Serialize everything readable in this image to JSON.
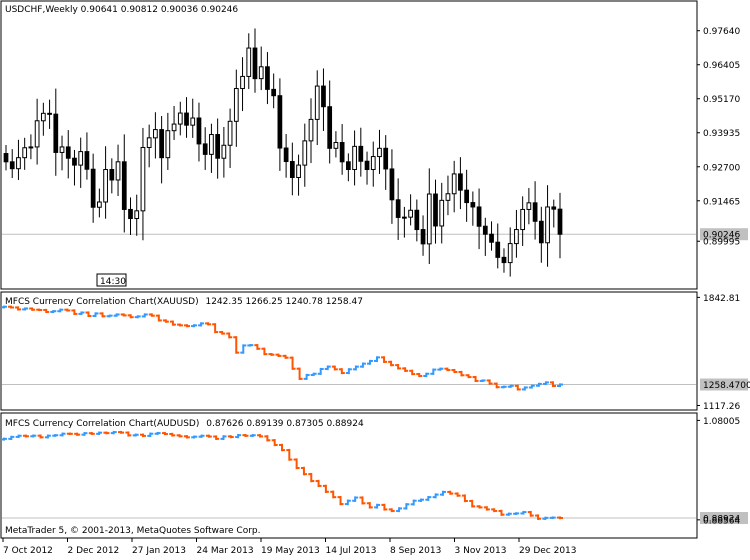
{
  "window": {
    "header": "USDCHF,Weekly  0.90641 0.90812 0.90036 0.90246",
    "time_marker": "14:30",
    "copyright": "MetaTrader 5, © 2001-2013, MetaQuotes Software Corp."
  },
  "colors": {
    "bull": "#ffffff",
    "bear": "#000000",
    "up_bar": "#3399ff",
    "down_bar": "#ff5500",
    "grid_line": "#c0c0c0",
    "frame": "#000000"
  },
  "chart_data": [
    {
      "type": "candlestick",
      "title": "USDCHF,Weekly",
      "ohlc_label": "0.90641 0.90812 0.90036 0.90246",
      "ylim": [
        0.8837,
        0.9861
      ],
      "y_ticks": [
        "0.97640",
        "0.96405",
        "0.95170",
        "0.93935",
        "0.92700",
        "0.91465",
        "0.90246",
        "0.89995"
      ],
      "last_value_label": "0.90246",
      "series_close": [
        0.9288,
        0.9263,
        0.9303,
        0.9339,
        0.9342,
        0.9437,
        0.9464,
        0.9461,
        0.9322,
        0.9342,
        0.9301,
        0.9276,
        0.9325,
        0.9261,
        0.9123,
        0.9142,
        0.926,
        0.9222,
        0.9288,
        0.9115,
        0.9082,
        0.911,
        0.934,
        0.9375,
        0.9405,
        0.9303,
        0.9401,
        0.9425,
        0.9465,
        0.9421,
        0.9447,
        0.9353,
        0.9315,
        0.9387,
        0.9301,
        0.9348,
        0.9435,
        0.9554,
        0.9598,
        0.9701,
        0.959,
        0.9633,
        0.9551,
        0.9528,
        0.9338,
        0.9289,
        0.9231,
        0.9276,
        0.9364,
        0.9442,
        0.9563,
        0.9488,
        0.9337,
        0.9358,
        0.9288,
        0.926,
        0.9344,
        0.929,
        0.926,
        0.9307,
        0.9337,
        0.9262,
        0.915,
        0.9086,
        0.9087,
        0.9112,
        0.9042,
        0.899,
        0.9171,
        0.9055,
        0.9148,
        0.9172,
        0.9244,
        0.9185,
        0.914,
        0.9124,
        0.9054,
        0.9025,
        0.8996,
        0.8941,
        0.8922,
        0.8991,
        0.9042,
        0.9115,
        0.9139,
        0.9072,
        0.8994,
        0.9124,
        0.9116,
        0.9025
      ],
      "x_ticks": [
        "7 Oct 2012",
        "2 Dec 2012",
        "27 Jan 2013",
        "24 Mar 2013",
        "19 May 2013",
        "14 Jul 2013",
        "8 Sep 2013",
        "3 Nov 2013",
        "29 Dec 2013"
      ]
    },
    {
      "type": "bar",
      "title": "MFCS Currency Correlation Chart(XAUUSD)",
      "ohlc_label": "1242.35 1266.25 1240.78 1258.47",
      "ylim": [
        1107.0,
        1852.0
      ],
      "y_ticks": [
        "1842.81",
        "1117.26"
      ],
      "last_value_label": "1258.4700",
      "series_close": [
        1780,
        1775,
        1762,
        1768,
        1760,
        1758,
        1745,
        1750,
        1760,
        1755,
        1732,
        1741,
        1718,
        1735,
        1716,
        1720,
        1728,
        1722,
        1710,
        1715,
        1728,
        1720,
        1688,
        1680,
        1660,
        1655,
        1650,
        1655,
        1668,
        1662,
        1610,
        1600,
        1575,
        1472,
        1520,
        1522,
        1498,
        1462,
        1458,
        1450,
        1438,
        1364,
        1296,
        1322,
        1330,
        1362,
        1378,
        1360,
        1335,
        1360,
        1378,
        1398,
        1416,
        1440,
        1410,
        1388,
        1366,
        1350,
        1328,
        1315,
        1330,
        1358,
        1364,
        1355,
        1342,
        1320,
        1308,
        1282,
        1285,
        1264,
        1240,
        1243,
        1249,
        1225,
        1238,
        1250,
        1262,
        1272,
        1248,
        1258
      ],
      "x_ticks": []
    },
    {
      "type": "bar",
      "title": "MFCS Currency Correlation Chart(AUDUSD)",
      "ohlc_label": "0.87626 0.89139 0.87305 0.88924",
      "ylim": [
        0.856,
        1.0867
      ],
      "y_ticks": [
        "1.08005",
        "0.88924",
        "0.88564"
      ],
      "last_value_label": "0.88924",
      "series_close": [
        1.044,
        1.0478,
        1.05,
        1.049,
        1.0502,
        1.047,
        1.0502,
        1.051,
        1.054,
        1.0538,
        1.0522,
        1.055,
        1.0538,
        1.056,
        1.0552,
        1.0572,
        1.0562,
        1.0508,
        1.052,
        1.0498,
        1.054,
        1.0552,
        1.0535,
        1.0508,
        1.049,
        1.047,
        1.0482,
        1.05,
        1.0485,
        1.044,
        1.0488,
        1.0475,
        1.0512,
        1.05,
        1.051,
        1.0488,
        1.0412,
        1.032,
        1.022,
        1.0035,
        0.987,
        0.975,
        0.9615,
        0.952,
        0.9405,
        0.93,
        0.9165,
        0.923,
        0.9292,
        0.918,
        0.91,
        0.9148,
        0.906,
        0.903,
        0.908,
        0.916,
        0.923,
        0.925,
        0.93,
        0.935,
        0.9402,
        0.937,
        0.933,
        0.9225,
        0.912,
        0.91,
        0.906,
        0.903,
        0.8958,
        0.8975,
        0.8982,
        0.9008,
        0.894,
        0.8878,
        0.8895,
        0.89,
        0.8892
      ],
      "x_ticks": []
    }
  ]
}
